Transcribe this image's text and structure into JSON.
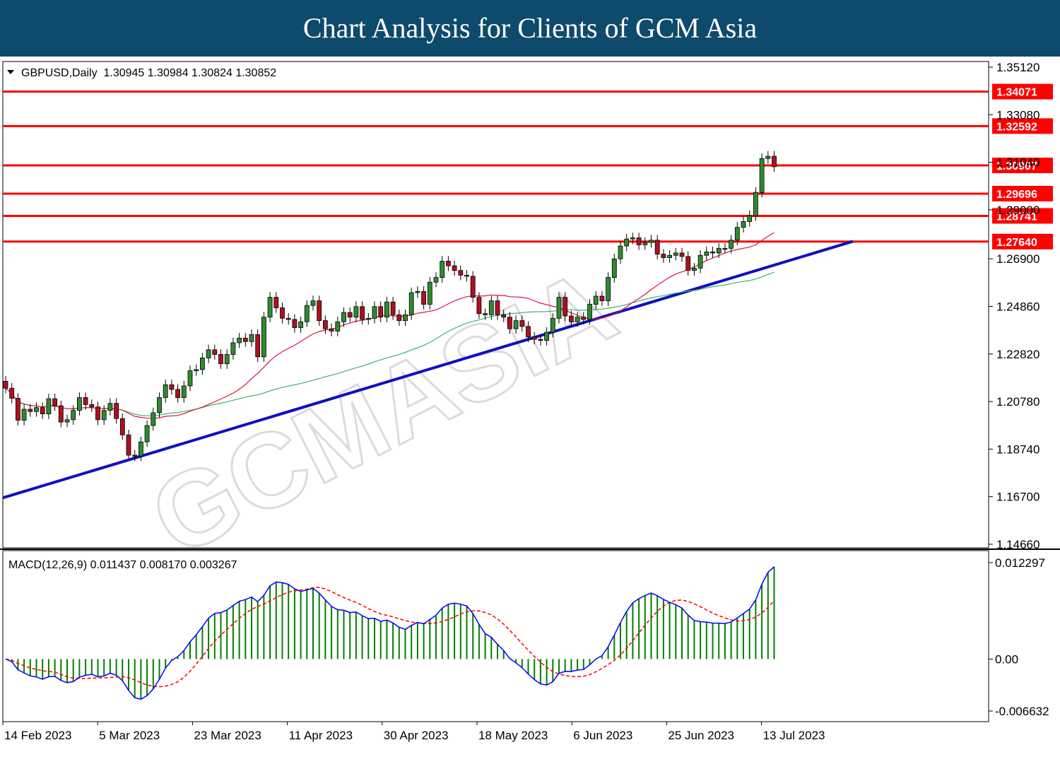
{
  "header": {
    "title": "Chart Analysis for Clients of GCM Asia"
  },
  "chart_data": {
    "type": "candlestick",
    "symbol_info": "GBPUSD,Daily  1.30945 1.30984 1.30824 1.30852",
    "ohlc_last": {
      "open": 1.30945,
      "high": 1.30984,
      "low": 1.30824,
      "close": 1.30852
    },
    "y_ticks": [
      "1.35120",
      "1.33080",
      "1.31040",
      "1.29000",
      "1.26900",
      "1.24860",
      "1.22820",
      "1.20780",
      "1.18740",
      "1.16700",
      "1.14660"
    ],
    "ylim": [
      1.1466,
      1.3512
    ],
    "x_ticks": [
      "14 Feb 2023",
      "5 Mar 2023",
      "23 Mar 2023",
      "11 Apr 2023",
      "30 Apr 2023",
      "18 May 2023",
      "6 Jun 2023",
      "25 Jun 2023",
      "13 Jul 2023"
    ],
    "levels": [
      {
        "label": "1.34071",
        "value": 1.34071
      },
      {
        "label": "1.32592",
        "value": 1.32592
      },
      {
        "label": "1.30907",
        "value": 1.30907
      },
      {
        "label": "1.29696",
        "value": 1.29696
      },
      {
        "label": "1.28741",
        "value": 1.28741
      },
      {
        "label": "1.27640",
        "value": 1.2764
      }
    ],
    "trendline": {
      "start_value": 1.1665,
      "end_value": 1.2765,
      "color": "#1010c0"
    },
    "closes": [
      1.2135,
      1.2092,
      1.1998,
      1.2045,
      1.2035,
      1.2052,
      1.2025,
      1.209,
      1.206,
      1.199,
      1.2,
      1.204,
      1.2095,
      1.2065,
      1.2055,
      1.2,
      1.204,
      1.207,
      1.2005,
      1.1935,
      1.1848,
      1.1845,
      1.1905,
      1.1975,
      1.203,
      1.2095,
      1.215,
      1.213,
      1.2095,
      1.2145,
      1.221,
      1.2215,
      1.2265,
      1.23,
      1.228,
      1.224,
      1.228,
      1.233,
      1.235,
      1.2335,
      1.2365,
      1.227,
      1.244,
      1.2525,
      1.248,
      1.2435,
      1.243,
      1.2395,
      1.242,
      1.249,
      1.251,
      1.2425,
      1.239,
      1.238,
      1.242,
      1.246,
      1.244,
      1.2485,
      1.243,
      1.2435,
      1.2485,
      1.244,
      1.2505,
      1.245,
      1.2425,
      1.245,
      1.2545,
      1.255,
      1.2495,
      1.259,
      1.261,
      1.268,
      1.266,
      1.264,
      1.262,
      1.2615,
      1.2525,
      1.2455,
      1.245,
      1.251,
      1.245,
      1.244,
      1.239,
      1.2425,
      1.24,
      1.2355,
      1.2345,
      1.234,
      1.2375,
      1.2435,
      1.2525,
      1.2445,
      1.242,
      1.244,
      1.243,
      1.2495,
      1.253,
      1.251,
      1.261,
      1.269,
      1.2745,
      1.2775,
      1.278,
      1.275,
      1.276,
      1.277,
      1.271,
      1.2695,
      1.2705,
      1.2715,
      1.27,
      1.264,
      1.265,
      1.2705,
      1.272,
      1.2715,
      1.2735,
      1.2735,
      1.277,
      1.2825,
      1.285,
      1.2875,
      1.2975,
      1.312,
      1.313,
      1.3085
    ],
    "ma_fast_color": "#dc143c",
    "ma_slow_color": "#3cb371",
    "macd": {
      "label": "MACD(12,26,9) 0.011437 0.008170 0.003267",
      "y_ticks": [
        "0.012297",
        "0.00",
        "-0.006632"
      ],
      "ylim": [
        -0.006632,
        0.012297
      ],
      "main_color": "#0000ff",
      "signal_color": "#ff0000",
      "histogram_color": "#008000"
    }
  }
}
